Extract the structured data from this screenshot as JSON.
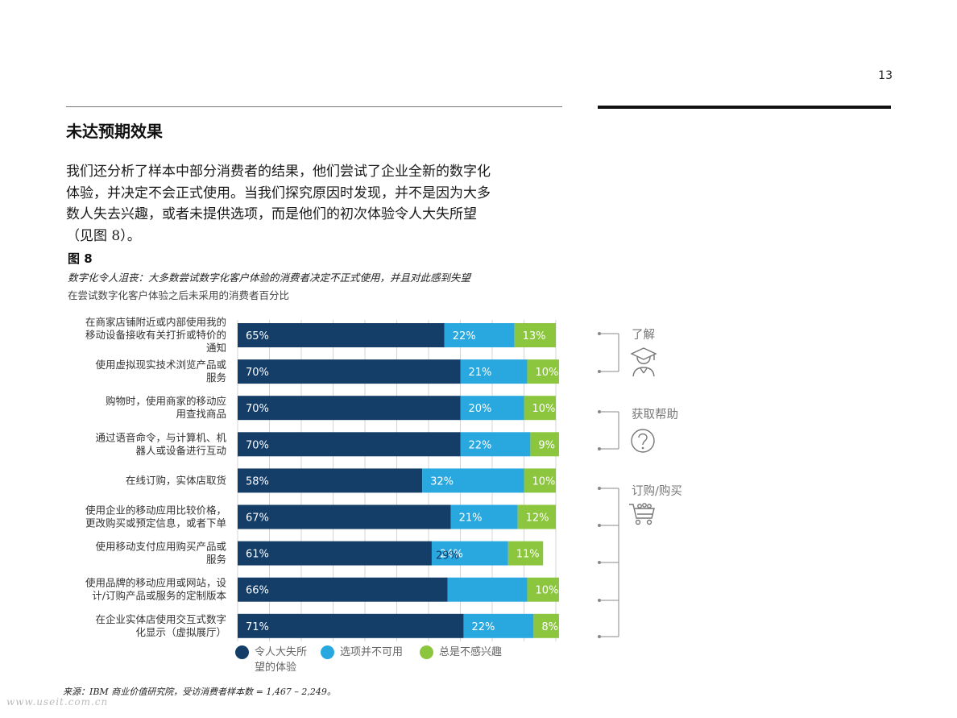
{
  "page": {
    "number": "13",
    "section_title": "未达预期效果",
    "body_lines": [
      "我们还分析了样本中部分消费者的结果，他们尝试了企业全新的数字化",
      "体验，并决定不会正式使用。当我们探究原因时发现，并不是因为大多",
      "数人失去兴趣，或者未提供选项，而是他们的初次体验令人大失所望",
      "（见图 8）。"
    ],
    "figure_label": "图 8",
    "figure_caption": "数字化令人沮丧：大多数尝试数字化客户体验的消费者决定不正式使用，并且对此感到失望",
    "figure_subcaption": "在尝试数字化客户体验之后未采用的消费者百分比",
    "source": "来源：IBM 商业价值研究院，受访消费者样本数 = 1,467 – 2,249。",
    "watermark": "www.useit.com.cn"
  },
  "side_nav": {
    "items": [
      {
        "label": "了解",
        "icon": "graduate-icon"
      },
      {
        "label": "获取帮助",
        "icon": "question-icon"
      },
      {
        "label": "订购/购买",
        "icon": "cart-icon"
      }
    ]
  },
  "legend": [
    {
      "label": "令人大失所望的体验",
      "lines": [
        "令人大失所",
        "望的体验"
      ],
      "color": "#143d68"
    },
    {
      "label": "选项并不可用",
      "lines": [
        "选项并不可用"
      ],
      "color": "#29a8e0"
    },
    {
      "label": "总是不感兴趣",
      "lines": [
        "总是不感兴趣"
      ],
      "color": "#8cc63f"
    }
  ],
  "chart_data": {
    "type": "bar",
    "orientation": "horizontal",
    "stacked": true,
    "xlim": [
      0,
      100
    ],
    "grid": true,
    "legend_position": "bottom",
    "categories": [
      "在商家店铺附近或内部使用我的移动设备接收有关打折或特价的通知",
      "使用虚拟现实技术浏览产品或服务",
      "购物时，使用商家的移动应用查找商品",
      "通过语音命令，与计算机、机器人或设备进行互动",
      "在线订购，实体店取货",
      "使用企业的移动应用比较价格，更改购买或预定信息，或者下单",
      "使用移动支付应用购买产品或服务",
      "使用品牌的移动应用或网站，设计/订购产品或服务的定制版本",
      "在企业实体店使用交互式数字化显示（虚拟展厅）"
    ],
    "category_lines": [
      [
        "在商家店铺附近或内部使用我的",
        "移动设备接收有关打折或特价的",
        "通知"
      ],
      [
        "使用虚拟现实技术浏览产品或",
        "服务"
      ],
      [
        "购物时，使用商家的移动应",
        "用查找商品"
      ],
      [
        "通过语音命令，与计算机、机",
        "器人或设备进行互动"
      ],
      [
        "在线订购，实体店取货"
      ],
      [
        "使用企业的移动应用比较价格，",
        "更改购买或预定信息，或者下单"
      ],
      [
        "使用移动支付应用购买产品或",
        "服务"
      ],
      [
        "使用品牌的移动应用或网站，设",
        "计/订购产品或服务的定制版本"
      ],
      [
        "在企业实体店使用交互式数字",
        "化显示（虚拟展厅）"
      ]
    ],
    "series": [
      {
        "name": "令人大失所望的体验",
        "color": "#143d68",
        "values": [
          65,
          70,
          70,
          70,
          58,
          67,
          61,
          66,
          71
        ],
        "labels": [
          "65%",
          "70%",
          "70%",
          "70%",
          "58%",
          "67%",
          "61%",
          "66%",
          "71%"
        ]
      },
      {
        "name": "选项并不可用",
        "color": "#29a8e0",
        "values": [
          22,
          21,
          20,
          22,
          32,
          21,
          24,
          25,
          22
        ],
        "labels": [
          "22%",
          "21%",
          "20%",
          "22%",
          "32%",
          "21%",
          "24%",
          "",
          "22%"
        ]
      },
      {
        "name": "总是不感兴趣",
        "color": "#8cc63f",
        "values": [
          13,
          10,
          10,
          9,
          10,
          12,
          11,
          10,
          8
        ],
        "labels": [
          "13%",
          "10%",
          "10%",
          "9%",
          "10%",
          "12%",
          "11%",
          "10%",
          "8%"
        ]
      }
    ],
    "annotations": [
      {
        "category_index": 6,
        "text": "29%",
        "color": "#143d68"
      }
    ]
  }
}
